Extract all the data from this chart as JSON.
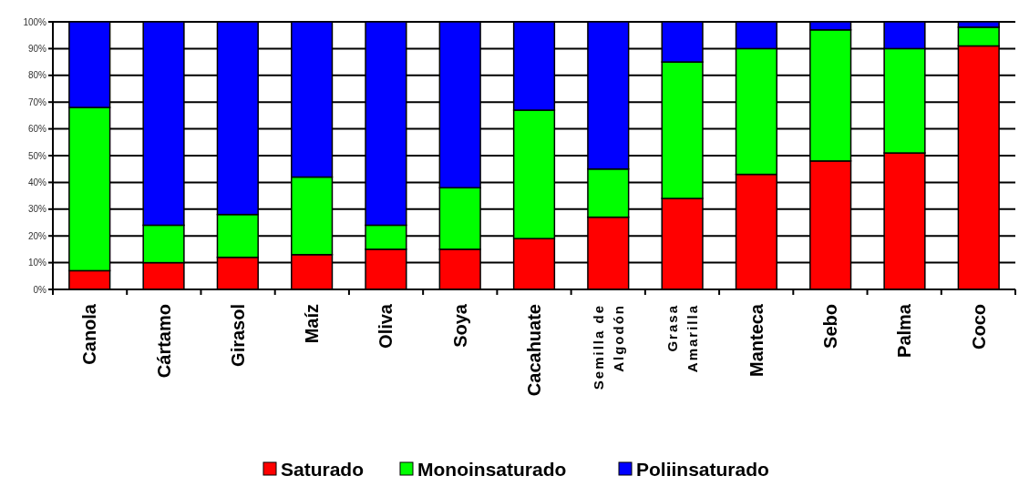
{
  "chart_data": {
    "type": "bar",
    "stacked": true,
    "categories": [
      "Canola",
      "Cártamo",
      "Girasol",
      "Maíz",
      "Oliva",
      "Soya",
      "Cacahuate",
      "Semilla de\nAlgodón",
      "Grasa\nAmarilla",
      "Manteca",
      "Sebo",
      "Palma",
      "Coco"
    ],
    "series": [
      {
        "name": "Saturado",
        "color": "#ff0000",
        "values": [
          7,
          10,
          12,
          13,
          15,
          15,
          19,
          27,
          34,
          43,
          48,
          51,
          91
        ]
      },
      {
        "name": "Monoinsaturado",
        "color": "#00ff00",
        "values": [
          61,
          14,
          16,
          29,
          9,
          23,
          48,
          18,
          51,
          47,
          49,
          39,
          7
        ]
      },
      {
        "name": "Poliinsaturado",
        "color": "#0000ff",
        "values": [
          32,
          76,
          72,
          58,
          76,
          62,
          33,
          55,
          15,
          10,
          3,
          10,
          2
        ]
      }
    ],
    "ylim": [
      0,
      100
    ],
    "yticks": [
      {
        "value": 0,
        "label": "0%"
      },
      {
        "value": 10,
        "label": "10%"
      },
      {
        "value": 20,
        "label": "20%"
      },
      {
        "value": 30,
        "label": "30%"
      },
      {
        "value": 40,
        "label": "40%"
      },
      {
        "value": 50,
        "label": "50%"
      },
      {
        "value": 60,
        "label": "60%"
      },
      {
        "value": 70,
        "label": "70%"
      },
      {
        "value": 80,
        "label": "80%"
      },
      {
        "value": 90,
        "label": "90%"
      },
      {
        "value": 100,
        "label": "100%"
      }
    ],
    "grid": "y",
    "legend": "bottom"
  }
}
